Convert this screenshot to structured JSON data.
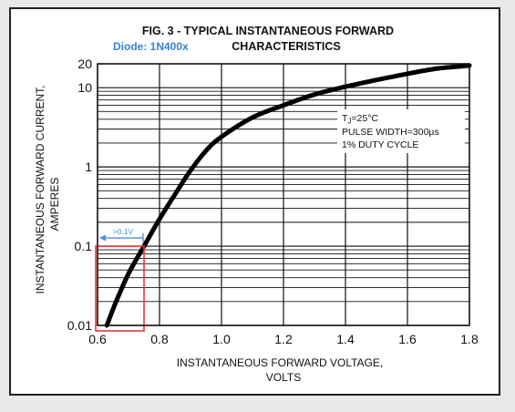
{
  "chart_data": {
    "type": "line",
    "title_line1": "FIG. 3 - TYPICAL INSTANTANEOUS FORWARD",
    "title_line2": "CHARACTERISTICS",
    "annotation_label": "Diode: 1N400x",
    "xlabel_line1": "INSTANTANEOUS FORWARD VOLTAGE,",
    "xlabel_line2": "VOLTS",
    "ylabel_line1": "INSTANTANEOUS FORWARD CURRENT,",
    "ylabel_line2": "AMPERES",
    "x_scale": "linear",
    "y_scale": "log",
    "xlim": [
      0.6,
      1.8
    ],
    "ylim": [
      0.01,
      20
    ],
    "x_ticks": [
      0.6,
      0.8,
      1.0,
      1.2,
      1.4,
      1.6,
      1.8
    ],
    "x_tick_labels": [
      "0.6",
      "0.8",
      "1.0",
      "1.2",
      "1.4",
      "1.6",
      "1.8"
    ],
    "y_ticks": [
      0.01,
      0.1,
      1,
      10,
      20
    ],
    "y_tick_labels": [
      "0.01",
      "0.1",
      "1",
      "10",
      "20"
    ],
    "grid": true,
    "conditions": [
      "TJ=25°C",
      "PULSE WIDTH=300µs",
      "1% DUTY CYCLE"
    ],
    "conditions_display": {
      "tj_main": "T",
      "tj_sub": "J",
      "tj_rest": "=25°C",
      "pulse_width": "PULSE WIDTH=300µs",
      "duty_cycle": "1% DUTY CYCLE"
    },
    "marker_text": ">0.1V",
    "highlight_box": {
      "x_min": 0.6,
      "x_max": 0.75,
      "y_min": 0.01,
      "y_max": 0.1
    },
    "series": [
      {
        "x": [
          0.63,
          0.66,
          0.7,
          0.75,
          0.8,
          0.85,
          0.9,
          0.95,
          1.0,
          1.1,
          1.2,
          1.3,
          1.4,
          1.5,
          1.6,
          1.7,
          1.8
        ],
        "y": [
          0.01,
          0.02,
          0.045,
          0.1,
          0.22,
          0.45,
          0.9,
          1.6,
          2.4,
          4.2,
          6.0,
          8.2,
          10.3,
          12.5,
          15.0,
          17.5,
          19.0
        ]
      }
    ],
    "colors": {
      "curve": "#000000",
      "highlight": "#e53935",
      "marker": "#4a90d9",
      "annotation": "#3b82d6"
    }
  }
}
